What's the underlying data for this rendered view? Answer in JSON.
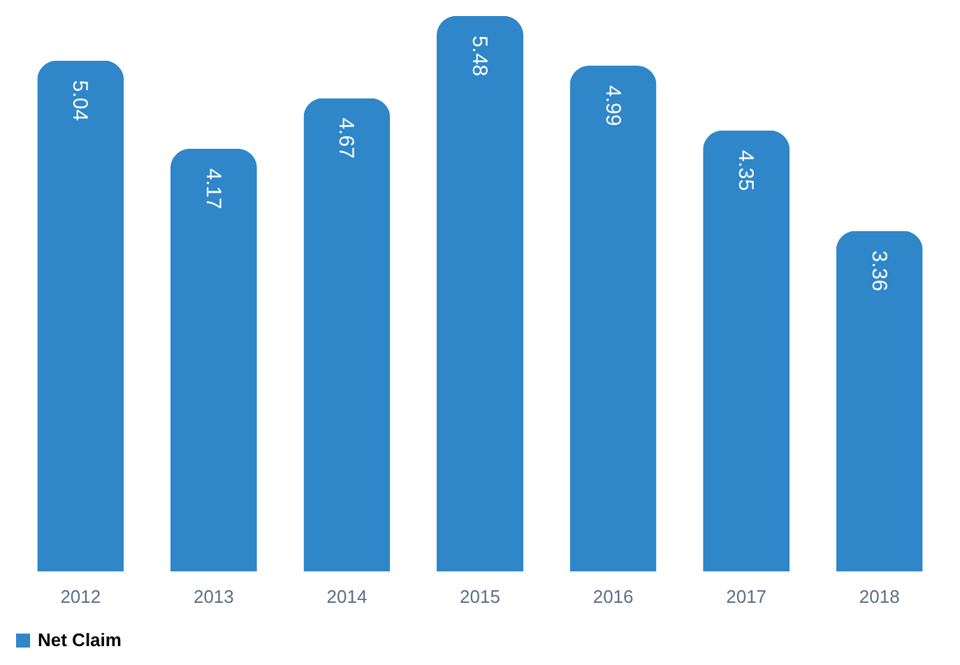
{
  "chart_data": {
    "type": "bar",
    "categories": [
      "2012",
      "2013",
      "2014",
      "2015",
      "2016",
      "2017",
      "2018"
    ],
    "series": [
      {
        "name": "Net Claim",
        "color": "#2f86c9",
        "values": [
          5.04,
          4.17,
          4.67,
          5.48,
          4.99,
          4.35,
          3.36
        ]
      }
    ],
    "data_labels": true,
    "legend": "bottom",
    "grid": false
  }
}
